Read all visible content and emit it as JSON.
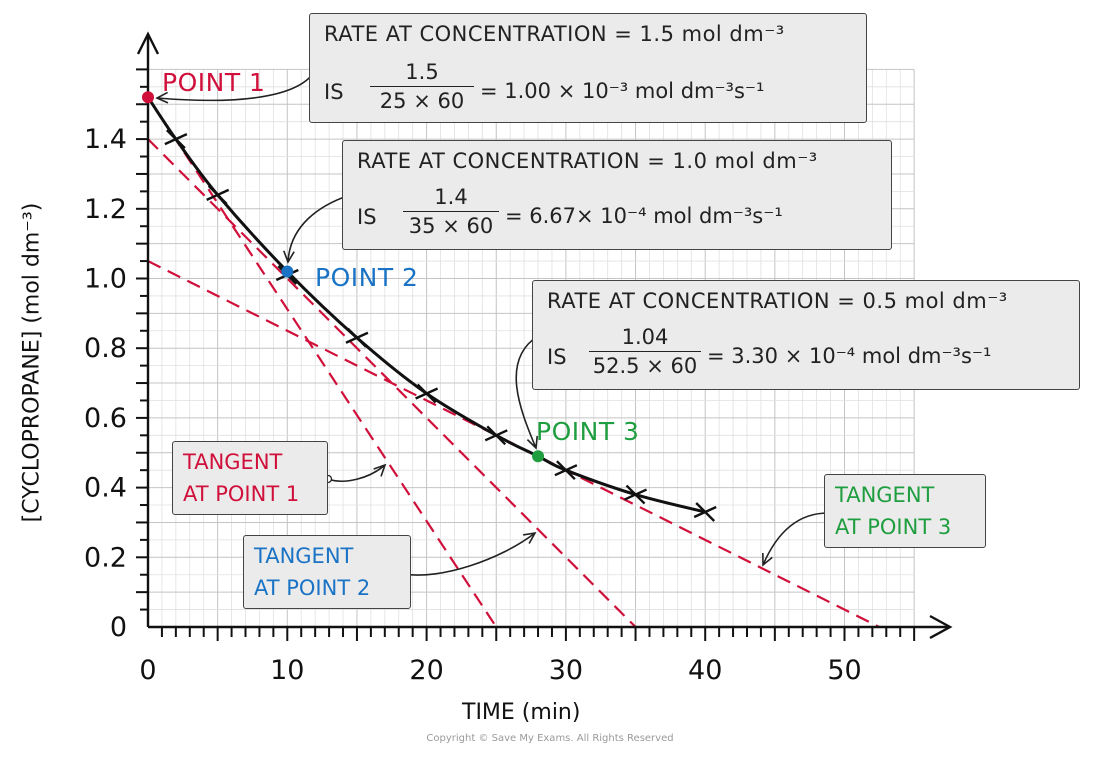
{
  "chart_data": {
    "type": "line",
    "xlabel": "TIME  (min)",
    "ylabel": "[CYCLOPROPANE]  (mol dm⁻³)",
    "xlim": [
      0,
      55
    ],
    "ylim": [
      0,
      1.6
    ],
    "x_ticks": [
      0,
      10,
      20,
      30,
      40,
      50
    ],
    "y_ticks": [
      0,
      0.2,
      0.4,
      0.6,
      0.8,
      1.0,
      1.2,
      1.4
    ],
    "x_tick_labels": [
      "0",
      "10",
      "20",
      "30",
      "40",
      "50"
    ],
    "y_tick_labels": [
      "0",
      "0.2",
      "0.4",
      "0.6",
      "0.8",
      "1.0",
      "1.2",
      "1.4"
    ],
    "grid": true,
    "curve": {
      "x": [
        0,
        2,
        5,
        10,
        15,
        20,
        25,
        28,
        30,
        35,
        40
      ],
      "y": [
        1.52,
        1.4,
        1.24,
        1.02,
        0.83,
        0.67,
        0.55,
        0.49,
        0.45,
        0.38,
        0.33
      ]
    },
    "measured_points": {
      "x": [
        2,
        5,
        10,
        15,
        20,
        25,
        30,
        35,
        40
      ],
      "y": [
        1.4,
        1.24,
        1.01,
        0.83,
        0.67,
        0.55,
        0.45,
        0.38,
        0.33
      ]
    },
    "highlight_points": [
      {
        "label": "POINT 1",
        "x": 0,
        "y": 1.52,
        "color": "#d0103a"
      },
      {
        "label": "POINT 2",
        "x": 10,
        "y": 1.02,
        "color": "#1a73c5"
      },
      {
        "label": "POINT 3",
        "x": 28,
        "y": 0.49,
        "color": "#1f9e40"
      }
    ],
    "tangents": [
      {
        "label": [
          "TANGENT",
          "AT POINT 1"
        ],
        "color": "#d0103a",
        "x": [
          0,
          25
        ],
        "y": [
          1.52,
          0
        ]
      },
      {
        "label": [
          "TANGENT",
          "AT POINT 2"
        ],
        "color": "#1a73c5",
        "x": [
          0,
          35
        ],
        "y": [
          1.4,
          0
        ]
      },
      {
        "label": [
          "TANGENT",
          "AT POINT 3"
        ],
        "color": "#1f9e40",
        "x": [
          0,
          52.5
        ],
        "y": [
          1.05,
          0
        ]
      }
    ],
    "tangent_line_color": "#d0103a",
    "annotations": [
      {
        "line1": "RATE  AT  CONCENTRATION = 1.5 mol dm⁻³",
        "is": "IS",
        "numerator": "1.5",
        "denominator": "25 × 60",
        "result": "= 1.00 × 10⁻³ mol dm⁻³s⁻¹"
      },
      {
        "line1": "RATE  AT  CONCENTRATION = 1.0 mol dm⁻³",
        "is": "IS",
        "numerator": "1.4",
        "denominator": "35 × 60",
        "result": "= 6.67× 10⁻⁴ mol dm⁻³s⁻¹"
      },
      {
        "line1": "RATE  AT  CONCENTRATION = 0.5 mol dm⁻³",
        "is": "IS",
        "numerator": "1.04",
        "denominator": "52.5 × 60",
        "result": "= 3.30 × 10⁻⁴ mol dm⁻³s⁻¹"
      }
    ]
  },
  "copyright": "Copyright © Save My Exams. All Rights Reserved"
}
